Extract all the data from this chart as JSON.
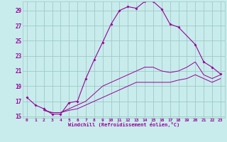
{
  "xlabel": "Windchill (Refroidissement éolien,°C)",
  "background_color": "#c8ecec",
  "grid_color": "#a0c8c8",
  "line_color": "#990099",
  "xmin": -0.5,
  "xmax": 23.5,
  "ymin": 14.8,
  "ymax": 30.2,
  "yticks": [
    15,
    17,
    19,
    21,
    23,
    25,
    27,
    29
  ],
  "xticks": [
    0,
    1,
    2,
    3,
    4,
    5,
    6,
    7,
    8,
    9,
    10,
    11,
    12,
    13,
    14,
    15,
    16,
    17,
    18,
    19,
    20,
    21,
    22,
    23
  ],
  "series": [
    {
      "x": [
        0,
        1,
        2,
        3,
        4,
        5,
        6,
        7,
        8,
        9,
        10,
        11,
        12,
        13,
        14,
        15,
        16,
        17,
        18,
        20,
        21,
        22,
        23
      ],
      "y": [
        17.5,
        16.5,
        16.0,
        15.3,
        15.3,
        16.8,
        17.0,
        20.0,
        22.5,
        24.8,
        27.2,
        29.0,
        29.5,
        29.3,
        30.2,
        30.2,
        29.2,
        27.2,
        26.8,
        24.5,
        22.2,
        21.5,
        20.6
      ],
      "has_markers": true
    },
    {
      "x": [
        2,
        3,
        4,
        5,
        6,
        7,
        8,
        9,
        10,
        11,
        12,
        13,
        14,
        15,
        16,
        17,
        18,
        19,
        20,
        21,
        22,
        23
      ],
      "y": [
        15.8,
        15.5,
        15.5,
        16.0,
        16.5,
        17.0,
        18.0,
        19.0,
        19.5,
        20.0,
        20.5,
        21.0,
        21.5,
        21.5,
        21.0,
        20.8,
        21.0,
        21.5,
        22.2,
        20.5,
        20.0,
        20.5
      ],
      "has_markers": false
    },
    {
      "x": [
        2,
        3,
        4,
        5,
        6,
        7,
        8,
        9,
        10,
        11,
        12,
        13,
        14,
        15,
        16,
        17,
        18,
        19,
        20,
        21,
        22,
        23
      ],
      "y": [
        15.8,
        15.5,
        15.5,
        15.8,
        16.0,
        16.5,
        17.0,
        17.5,
        18.0,
        18.5,
        19.0,
        19.5,
        19.5,
        19.5,
        19.5,
        19.5,
        19.8,
        20.0,
        20.5,
        20.0,
        19.5,
        20.0
      ],
      "has_markers": false
    }
  ]
}
